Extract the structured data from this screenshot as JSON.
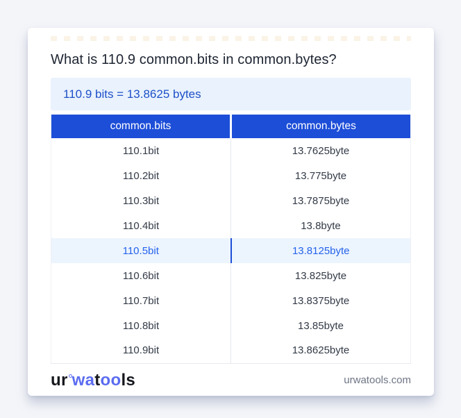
{
  "header": {
    "title": "What is 110.9 common.bits in common.bytes?"
  },
  "result": {
    "text": "110.9 bits = 13.8625 bytes"
  },
  "table": {
    "headers": [
      "common.bits",
      "common.bytes"
    ],
    "rows": [
      {
        "bits": "110.1bit",
        "bytes": "13.7625byte"
      },
      {
        "bits": "110.2bit",
        "bytes": "13.775byte"
      },
      {
        "bits": "110.3bit",
        "bytes": "13.7875byte"
      },
      {
        "bits": "110.4bit",
        "bytes": "13.8byte"
      },
      {
        "bits": "110.5bit",
        "bytes": "13.8125byte"
      },
      {
        "bits": "110.6bit",
        "bytes": "13.825byte"
      },
      {
        "bits": "110.7bit",
        "bytes": "13.8375byte"
      },
      {
        "bits": "110.8bit",
        "bytes": "13.85byte"
      },
      {
        "bits": "110.9bit",
        "bytes": "13.8625byte"
      }
    ],
    "highlighted_row_index": 4
  },
  "footer": {
    "logo": {
      "seg1": "ur",
      "ring_icon": "small-circle",
      "seg2": "wa",
      "seg3": "t",
      "seg4": "oo",
      "seg5": "ls"
    },
    "site": "urwatools.com"
  },
  "colors": {
    "accent_blue": "#1d4ed8",
    "highlight_text": "#2563eb",
    "highlight_bg": "#ecf4fe",
    "result_bg": "#e9f2fd",
    "result_text": "#1e50c8",
    "logo_blue": "#5b6cf0",
    "page_bg": "#f4f5f9",
    "row_text": "#333a47"
  }
}
